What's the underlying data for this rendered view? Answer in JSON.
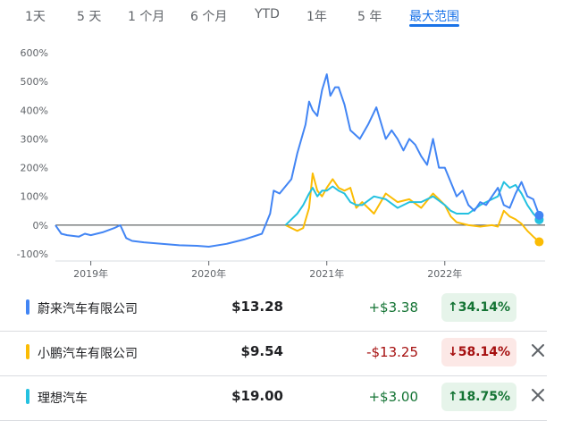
{
  "tabs": [
    {
      "label": "1天",
      "active": false
    },
    {
      "label": "5 天",
      "active": false
    },
    {
      "label": "1 个月",
      "active": false
    },
    {
      "label": "6 个月",
      "active": false
    },
    {
      "label": "YTD",
      "active": false
    },
    {
      "label": "1年",
      "active": false
    },
    {
      "label": "5 年",
      "active": false
    },
    {
      "label": "最大范围",
      "active": true
    }
  ],
  "colors": {
    "up": "#137333",
    "up_bg": "#e6f4ea",
    "down": "#a50e0e",
    "down_bg": "#fce8e6",
    "accent": "#1a73e8"
  },
  "chart_data": {
    "type": "line",
    "y_unit": "%",
    "ylim": [
      -100,
      600
    ],
    "y_ticks": [
      600,
      500,
      400,
      300,
      200,
      100,
      0,
      -100
    ],
    "y_tick_labels": [
      "600%",
      "500%",
      "400%",
      "300%",
      "200%",
      "100%",
      "0%",
      "-100%"
    ],
    "x_ticks": [
      2019,
      2020,
      2021,
      2022
    ],
    "x_tick_labels": [
      "2019年",
      "2020年",
      "2021年",
      "2022年"
    ],
    "xlim": [
      2018.7,
      2022.85
    ],
    "zero_line": true,
    "series": [
      {
        "name": "蔚来汽车有限公司",
        "color": "#4285f4",
        "x": [
          2018.7,
          2018.75,
          2018.8,
          2018.9,
          2018.95,
          2019.0,
          2019.1,
          2019.2,
          2019.25,
          2019.3,
          2019.35,
          2019.45,
          2019.6,
          2019.75,
          2019.9,
          2020.0,
          2020.15,
          2020.3,
          2020.45,
          2020.52,
          2020.55,
          2020.6,
          2020.7,
          2020.75,
          2020.82,
          2020.85,
          2020.88,
          2020.92,
          2020.96,
          2021.0,
          2021.03,
          2021.07,
          2021.1,
          2021.15,
          2021.2,
          2021.28,
          2021.35,
          2021.42,
          2021.5,
          2021.55,
          2021.6,
          2021.65,
          2021.7,
          2021.75,
          2021.8,
          2021.85,
          2021.9,
          2021.95,
          2022.0,
          2022.05,
          2022.1,
          2022.15,
          2022.2,
          2022.25,
          2022.3,
          2022.35,
          2022.4,
          2022.45,
          2022.5,
          2022.55,
          2022.6,
          2022.65,
          2022.7,
          2022.75,
          2022.8
        ],
        "y": [
          0,
          -30,
          -35,
          -40,
          -30,
          -35,
          -25,
          -10,
          0,
          -45,
          -55,
          -60,
          -65,
          -70,
          -72,
          -75,
          -65,
          -50,
          -30,
          40,
          120,
          110,
          160,
          250,
          350,
          430,
          400,
          380,
          470,
          525,
          450,
          480,
          480,
          420,
          330,
          300,
          350,
          410,
          300,
          330,
          300,
          260,
          300,
          280,
          240,
          210,
          300,
          200,
          200,
          150,
          100,
          120,
          70,
          50,
          80,
          70,
          100,
          130,
          70,
          60,
          110,
          150,
          100,
          90,
          34.14
        ]
      },
      {
        "name": "小鹏汽车有限公司",
        "color": "#fbbc04",
        "x": [
          2020.65,
          2020.7,
          2020.75,
          2020.8,
          2020.85,
          2020.88,
          2020.92,
          2020.96,
          2021.0,
          2021.05,
          2021.1,
          2021.15,
          2021.2,
          2021.25,
          2021.3,
          2021.4,
          2021.5,
          2021.6,
          2021.7,
          2021.8,
          2021.9,
          2021.95,
          2022.0,
          2022.05,
          2022.1,
          2022.2,
          2022.3,
          2022.4,
          2022.45,
          2022.5,
          2022.55,
          2022.6,
          2022.65,
          2022.7,
          2022.75,
          2022.8
        ],
        "y": [
          0,
          -10,
          -20,
          -10,
          60,
          180,
          120,
          100,
          130,
          160,
          130,
          120,
          130,
          60,
          80,
          40,
          110,
          80,
          90,
          60,
          110,
          90,
          70,
          30,
          10,
          0,
          -5,
          0,
          -5,
          50,
          30,
          20,
          5,
          -20,
          -40,
          -58.14
        ]
      },
      {
        "name": "理想汽车",
        "color": "#24c1e0",
        "x": [
          2020.65,
          2020.7,
          2020.75,
          2020.8,
          2020.85,
          2020.88,
          2020.92,
          2020.96,
          2021.0,
          2021.05,
          2021.1,
          2021.15,
          2021.2,
          2021.25,
          2021.3,
          2021.4,
          2021.5,
          2021.6,
          2021.7,
          2021.8,
          2021.9,
          2021.95,
          2022.0,
          2022.05,
          2022.1,
          2022.2,
          2022.3,
          2022.4,
          2022.45,
          2022.5,
          2022.55,
          2022.6,
          2022.65,
          2022.7,
          2022.75,
          2022.8
        ],
        "y": [
          0,
          20,
          40,
          70,
          110,
          130,
          100,
          120,
          120,
          135,
          120,
          110,
          80,
          70,
          70,
          100,
          90,
          60,
          80,
          80,
          100,
          85,
          70,
          50,
          40,
          40,
          70,
          90,
          100,
          150,
          130,
          140,
          110,
          70,
          40,
          18.75
        ]
      }
    ]
  },
  "stocks": [
    {
      "name": "蔚来汽车有限公司",
      "price": "$13.28",
      "change": "+$3.38",
      "percent": "34.14%",
      "direction": "up",
      "arrow": "↑",
      "color": "#4285f4",
      "closable": false
    },
    {
      "name": "小鹏汽车有限公司",
      "price": "$9.54",
      "change": "-$13.25",
      "percent": "58.14%",
      "direction": "down",
      "arrow": "↓",
      "color": "#fbbc04",
      "closable": true
    },
    {
      "name": "理想汽车",
      "price": "$19.00",
      "change": "+$3.00",
      "percent": "18.75%",
      "direction": "up",
      "arrow": "↑",
      "color": "#24c1e0",
      "closable": true
    }
  ]
}
